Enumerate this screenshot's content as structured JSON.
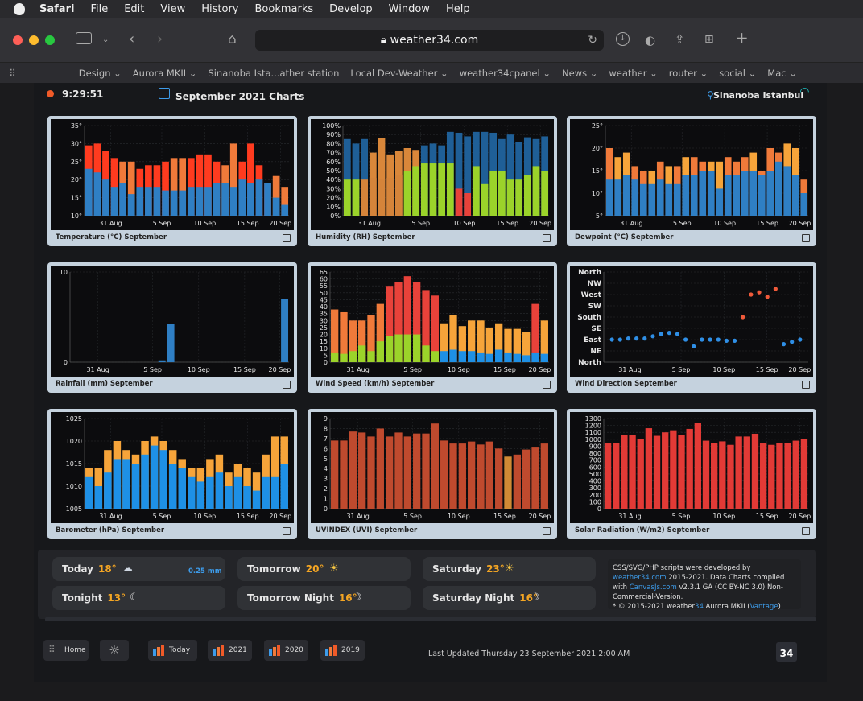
{
  "menubar": {
    "app": "Safari",
    "items": [
      "File",
      "Edit",
      "View",
      "History",
      "Bookmarks",
      "Develop",
      "Window",
      "Help"
    ]
  },
  "browser": {
    "url": "weather34.com"
  },
  "favorites": [
    "Design ⌄",
    "Aurora MKII ⌄",
    "Sinanoba Ista...ather station",
    "Local Dev-Weather ⌄",
    "weather34cpanel ⌄",
    "News ⌄",
    "weather ⌄",
    "router ⌄",
    "social ⌄",
    "Mac ⌄"
  ],
  "header": {
    "time": "9:29:51",
    "title": "September 2021 Charts",
    "location": "Sinanoba Istanbul"
  },
  "colors": {
    "blue": "#2f7fc4",
    "red": "#ff3b1f",
    "orange": "#f07a3a",
    "green": "#9bd32a",
    "amber": "#f6a43a",
    "darkblue": "#1f5f97"
  },
  "chart_data": [
    {
      "id": "temp",
      "type": "bar",
      "caption": "Temperature (°C) September",
      "xticks": [
        "31 Aug",
        "5 Sep",
        "10 Sep",
        "15 Sep",
        "20 Sep"
      ],
      "yticks": [
        "35°",
        "30°",
        "25°",
        "20°",
        "15°",
        "10°"
      ],
      "ylim": [
        10,
        35
      ],
      "series": [
        {
          "name": "",
          "color": "#2f7fc4",
          "values": [
            23,
            22,
            20,
            18,
            19,
            16,
            18,
            18,
            18,
            17,
            17,
            17,
            18,
            18,
            18,
            19,
            19,
            18,
            20,
            19,
            20,
            19,
            15,
            13
          ]
        },
        {
          "name": "",
          "color": "#ff3b1f",
          "values": [
            29.5,
            30,
            28,
            26,
            25,
            25,
            23,
            24,
            24,
            25,
            26,
            26,
            26,
            27,
            27,
            25,
            24,
            30,
            25,
            30,
            24,
            19,
            21,
            18
          ]
        }
      ]
    },
    {
      "id": "hum",
      "type": "bar",
      "caption": "Humidity (RH) September",
      "xticks": [
        "31 Aug",
        "5 Sep",
        "10 Sep",
        "15 Sep",
        "20 Sep"
      ],
      "yticks": [
        "100%",
        "90%",
        "80%",
        "70%",
        "60%",
        "50%",
        "40%",
        "30%",
        "20%",
        "10%",
        "0%"
      ],
      "ylim": [
        0,
        100
      ],
      "series": [
        {
          "name": "",
          "color": "#9bd32a",
          "values": [
            40,
            40,
            40,
            42,
            40,
            42,
            45,
            50,
            55,
            58,
            58,
            58,
            58,
            30,
            25,
            55,
            35,
            50,
            50,
            40,
            40,
            45,
            55,
            50
          ]
        },
        {
          "name": "",
          "color": "#1f5f97",
          "values": [
            85,
            80,
            85,
            70,
            86,
            68,
            72,
            75,
            73,
            78,
            80,
            78,
            93,
            92,
            88,
            93,
            93,
            92,
            85,
            90,
            82,
            87,
            85,
            88
          ]
        }
      ]
    },
    {
      "id": "dew",
      "type": "bar",
      "caption": "Dewpoint (°C) September",
      "xticks": [
        "31 Aug",
        "5 Sep",
        "10 Sep",
        "15 Sep",
        "20 Sep"
      ],
      "yticks": [
        "25°",
        "20°",
        "15°",
        "10°",
        "5°"
      ],
      "ylim": [
        5,
        25
      ],
      "series": [
        {
          "name": "",
          "color": "#2f7fc4",
          "values": [
            13,
            13,
            14,
            13,
            12,
            12,
            13,
            12,
            12,
            14,
            14,
            15,
            15,
            11,
            14,
            14,
            15,
            15,
            14,
            15,
            17,
            16,
            14,
            10
          ]
        },
        {
          "name": "",
          "color": "#f07a3a",
          "values": [
            20,
            18,
            19,
            16,
            15,
            15,
            17,
            16,
            16,
            18,
            18,
            17,
            17,
            17,
            18,
            17,
            18,
            19,
            15,
            20,
            19,
            21,
            20,
            13
          ]
        }
      ]
    },
    {
      "id": "rain",
      "type": "bar",
      "caption": "Rainfall (mm) September",
      "xticks": [
        "31 Aug",
        "5 Sep",
        "10 Sep",
        "15 Sep",
        "20 Sep"
      ],
      "yticks": [
        "10",
        "0"
      ],
      "ylim": [
        0,
        10
      ],
      "series": [
        {
          "name": "",
          "color": "#2f7fc4",
          "values": [
            0,
            0,
            0,
            0,
            0,
            0,
            0,
            0,
            0,
            0,
            0.2,
            4.2,
            0,
            0,
            0,
            0,
            0,
            0,
            0,
            0,
            0,
            0,
            0,
            0,
            7
          ]
        }
      ]
    },
    {
      "id": "wind",
      "type": "bar",
      "caption": "Wind Speed (km/h) September",
      "xticks": [
        "31 Aug",
        "5 Sep",
        "10 Sep",
        "15 Sep",
        "20 Sep"
      ],
      "yticks": [
        "65",
        "60",
        "55",
        "50",
        "45",
        "40",
        "35",
        "30",
        "25",
        "20",
        "15",
        "10",
        "5",
        "0"
      ],
      "ylim": [
        0,
        65
      ],
      "series": [
        {
          "name": "",
          "color": "#9bd32a",
          "values": [
            7,
            6,
            8,
            12,
            8,
            15,
            19,
            20,
            20,
            20,
            12,
            8,
            8,
            9,
            8,
            8,
            7,
            6,
            9,
            7,
            6,
            5,
            7,
            6
          ]
        },
        {
          "name": "",
          "color": "#ff3b1f",
          "values": [
            38,
            36,
            30,
            30,
            34,
            42,
            55,
            58,
            62,
            58,
            52,
            48,
            28,
            34,
            26,
            30,
            30,
            25,
            28,
            24,
            24,
            22,
            42,
            30
          ]
        }
      ]
    },
    {
      "id": "dir",
      "type": "scatter",
      "caption": "Wind Direction September",
      "xticks": [
        "31 Aug",
        "5 Sep",
        "10 Sep",
        "15 Sep",
        "20 Sep"
      ],
      "yticks": [
        "North",
        "NW",
        "West",
        "SW",
        "South",
        "SE",
        "East",
        "NE",
        "North"
      ],
      "x": [
        0,
        1,
        2,
        3,
        4,
        5,
        6,
        7,
        8,
        9,
        10,
        11,
        12,
        13,
        14,
        15,
        16,
        17,
        18,
        19,
        20,
        21,
        22,
        23
      ],
      "values": [
        2,
        2,
        2.1,
        2.1,
        2.1,
        2.3,
        2.5,
        2.6,
        2.5,
        2,
        1.4,
        2,
        2,
        2,
        1.9,
        1.9,
        4,
        6,
        6.2,
        5.8,
        6.5,
        1.6,
        1.8,
        2.0
      ]
    },
    {
      "id": "baro",
      "type": "bar",
      "caption": "Barometer (hPa) September",
      "xticks": [
        "31 Aug",
        "5 Sep",
        "10 Sep",
        "15 Sep",
        "20 Sep"
      ],
      "yticks": [
        "1025",
        "1020",
        "1015",
        "1010",
        "1005"
      ],
      "ylim": [
        1005,
        1025
      ],
      "series": [
        {
          "name": "",
          "color": "#1e90e6",
          "values": [
            1012,
            1010,
            1013,
            1016,
            1016,
            1015,
            1017,
            1019,
            1018,
            1015,
            1014,
            1012,
            1011,
            1012,
            1013,
            1010,
            1012,
            1010,
            1009,
            1012,
            1012,
            1015
          ]
        },
        {
          "name": "",
          "color": "#f6a43a",
          "values": [
            1014,
            1014,
            1018,
            1020,
            1018,
            1017,
            1020,
            1021,
            1020,
            1018,
            1016,
            1014,
            1014,
            1016,
            1017,
            1013,
            1015,
            1014,
            1013,
            1017,
            1021,
            1021
          ]
        }
      ]
    },
    {
      "id": "uv",
      "type": "bar",
      "caption": "UVINDEX (UVI) September",
      "xticks": [
        "31 Aug",
        "5 Sep",
        "10 Sep",
        "15 Sep",
        "20 Sep"
      ],
      "yticks": [
        "9",
        "8",
        "7",
        "6",
        "5",
        "4",
        "3",
        "2",
        "1",
        "0"
      ],
      "ylim": [
        0,
        9
      ],
      "series": [
        {
          "name": "",
          "color": "#bf4a2e",
          "values": [
            6.8,
            6.8,
            7.7,
            7.6,
            7.2,
            8,
            7.2,
            7.6,
            7.2,
            7.5,
            7.5,
            8.5,
            6.8,
            6.5,
            6.5,
            6.7,
            6.4,
            6.7,
            6,
            5.2,
            5.4,
            5.9,
            6.1,
            6.5
          ]
        }
      ]
    },
    {
      "id": "solar",
      "type": "bar",
      "caption": "Solar Radiation (W/m2) September",
      "xticks": [
        "31 Aug",
        "5 Sep",
        "10 Sep",
        "15 Sep",
        "20 Sep"
      ],
      "yticks": [
        "1300",
        "1200",
        "1100",
        "1000",
        "900",
        "800",
        "700",
        "600",
        "500",
        "400",
        "300",
        "200",
        "100",
        "0"
      ],
      "ylim": [
        0,
        1300
      ],
      "series": [
        {
          "name": "",
          "color": "#e23a36",
          "values": [
            940,
            950,
            1060,
            1060,
            1000,
            1160,
            1050,
            1100,
            1130,
            1060,
            1150,
            1240,
            980,
            950,
            970,
            920,
            1040,
            1040,
            1080,
            940,
            920,
            950,
            950,
            980,
            1010
          ]
        }
      ]
    }
  ],
  "forecast": [
    {
      "label": "Today",
      "temp": "18°",
      "icon": "cloud-rain-icon",
      "extra": "0.25 mm"
    },
    {
      "label": "Tonight",
      "temp": "13°",
      "icon": "moon-cloud-icon",
      "extra": ""
    },
    {
      "label": "Tomorrow",
      "temp": "20°",
      "icon": "sun-icon",
      "extra": ""
    },
    {
      "label": "Tomorrow Night",
      "temp": "16°",
      "icon": "moon-icon",
      "extra": ""
    },
    {
      "label": "Saturday",
      "temp": "23°",
      "icon": "sun-cloud-icon",
      "extra": ""
    },
    {
      "label": "Saturday Night",
      "temp": "16°",
      "icon": "moon-icon",
      "extra": ""
    }
  ],
  "credits": {
    "line1": "CSS/SVG/PHP scripts were developed by",
    "link1": "weather34.com",
    "line2": " 2015-2021. Data Charts compiled with ",
    "link2": "CanvasJs.com",
    "line3": " v2.3.1 GA (CC BY-NC 3.0) Non-Commercial-Version.",
    "line4": "* © 2015-2021 weather",
    "brand": "34",
    "line5": " Aurora MKII (",
    "link3": "Vantage",
    "line6": ")"
  },
  "footer": {
    "home": "Home",
    "today": "Today",
    "y2021": "2021",
    "y2020": "2020",
    "y2019": "2019",
    "updated": "Last Updated Thursday 23 September 2021 2:00 AM",
    "logo": "34"
  }
}
